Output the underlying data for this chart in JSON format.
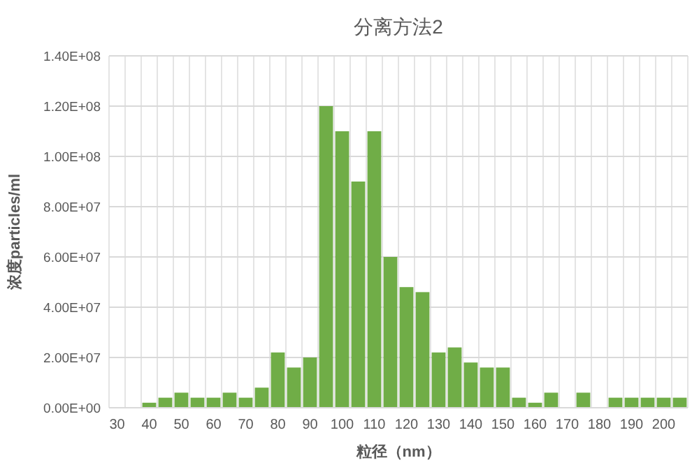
{
  "chart_data": {
    "type": "bar",
    "title": "分离方法2",
    "xlabel": "粒径（nm）",
    "ylabel": "浓度particles/ml",
    "categories": [
      "30",
      null,
      "40",
      null,
      "50",
      null,
      "60",
      null,
      "70",
      null,
      "80",
      null,
      "90",
      null,
      "100",
      null,
      "110",
      null,
      "120",
      null,
      "130",
      null,
      "140",
      null,
      "150",
      null,
      "160",
      null,
      "170",
      null,
      "180",
      null,
      "190",
      null,
      "200",
      null
    ],
    "values": [
      0,
      0,
      2000000,
      4000000,
      6000000,
      4000000,
      4000000,
      6000000,
      4000000,
      8000000,
      22000000,
      16000000,
      20000000,
      120000000,
      110000000,
      90000000,
      110000000,
      60000000,
      48000000,
      46000000,
      22000000,
      24000000,
      18000000,
      16000000,
      16000000,
      4000000,
      2000000,
      6000000,
      0,
      6000000,
      0,
      4000000,
      4000000,
      4000000,
      4000000,
      4000000
    ],
    "color": "#70ad47",
    "ylim": [
      0,
      140000000
    ],
    "yticks": [
      {
        "value": 0,
        "label": "0.00E+00"
      },
      {
        "value": 20000000,
        "label": "2.00E+07"
      },
      {
        "value": 40000000,
        "label": "4.00E+07"
      },
      {
        "value": 60000000,
        "label": "6.00E+07"
      },
      {
        "value": 80000000,
        "label": "8.00E+07"
      },
      {
        "value": 100000000,
        "label": "1.00E+08"
      },
      {
        "value": 120000000,
        "label": "1.20E+08"
      },
      {
        "value": 140000000,
        "label": "1.40E+08"
      }
    ],
    "grid": true
  }
}
